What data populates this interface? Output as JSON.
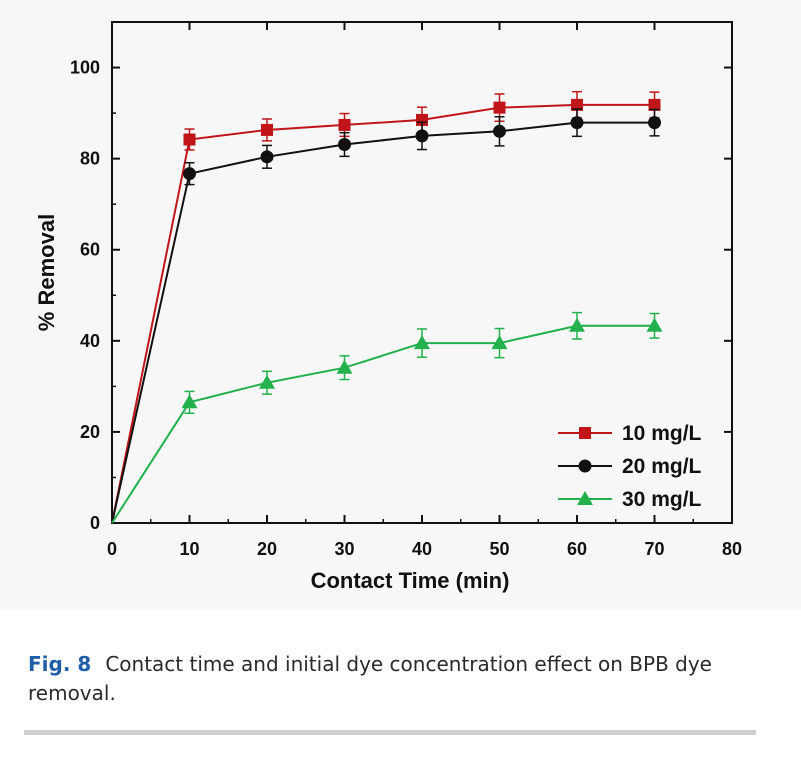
{
  "caption": {
    "label": "Fig. 8",
    "text": "Contact time and initial dye concentration effect on BPB dye removal."
  },
  "chart_data": {
    "type": "line",
    "xlabel": "Contact Time (min)",
    "ylabel": "% Removal",
    "xlim": [
      0,
      80
    ],
    "ylim": [
      0,
      110
    ],
    "xticks": [
      0,
      10,
      20,
      30,
      40,
      50,
      60,
      70,
      80
    ],
    "yticks": [
      0,
      20,
      40,
      60,
      80,
      100
    ],
    "grid": false,
    "legend_position": "bottom-right",
    "x": [
      0,
      10,
      20,
      30,
      40,
      50,
      60,
      70
    ],
    "series": [
      {
        "name": "10 mg/L",
        "marker": "square",
        "color": "#c0161a",
        "values": [
          0,
          84.2,
          86.3,
          87.4,
          88.5,
          91.2,
          91.8,
          91.8
        ],
        "errors": [
          0,
          2.3,
          2.4,
          2.5,
          2.8,
          3.0,
          2.9,
          2.8
        ]
      },
      {
        "name": "20 mg/L",
        "marker": "circle",
        "color": "#111111",
        "values": [
          0,
          76.7,
          80.4,
          83.1,
          85.0,
          86.0,
          87.9,
          87.9
        ],
        "errors": [
          0,
          2.4,
          2.5,
          2.6,
          3.0,
          3.2,
          3.0,
          2.9
        ]
      },
      {
        "name": "30 mg/L",
        "marker": "triangle",
        "color": "#22b14c",
        "values": [
          0,
          26.5,
          30.8,
          34.1,
          39.5,
          39.5,
          43.3,
          43.3
        ],
        "errors": [
          0,
          2.4,
          2.5,
          2.6,
          3.1,
          3.2,
          2.9,
          2.7
        ]
      }
    ]
  }
}
